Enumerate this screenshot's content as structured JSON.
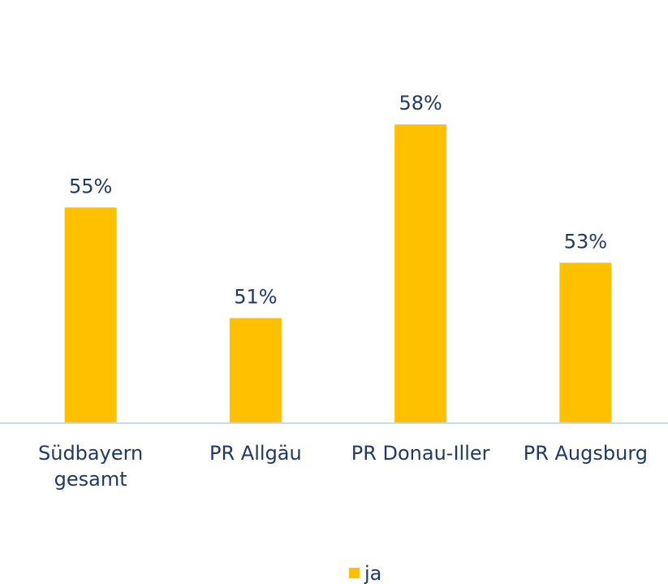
{
  "chart_data": {
    "type": "bar",
    "categories": [
      "Südbayern gesamt",
      "PR Allgäu",
      "PR Donau-Iller",
      "PR Augsburg"
    ],
    "series": [
      {
        "name": "ja",
        "color": "#ffc000",
        "values": [
          55,
          51,
          58,
          53
        ],
        "value_labels": [
          "55%",
          "51%",
          "58%",
          "53%"
        ]
      }
    ],
    "ylim": [
      47.2,
      62.5
    ]
  }
}
